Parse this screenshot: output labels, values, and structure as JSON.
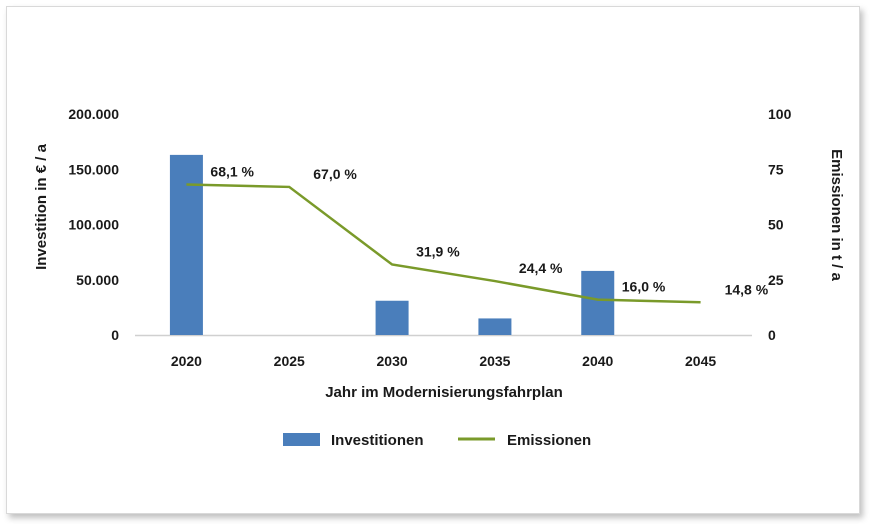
{
  "chart_data": {
    "type": "bar+line",
    "categories": [
      "2020",
      "2025",
      "2030",
      "2035",
      "2040",
      "2045"
    ],
    "series": [
      {
        "name": "Investitionen",
        "type": "bar",
        "axis": "left",
        "color": "#4a7ebb",
        "values": [
          163000,
          0,
          31000,
          15000,
          58000,
          0
        ]
      },
      {
        "name": "Emissionen",
        "type": "line",
        "axis": "right",
        "color": "#7a9a2a",
        "values": [
          68.1,
          67.0,
          31.9,
          24.4,
          16.0,
          14.8
        ],
        "labels": [
          "68,1 %",
          "67,0 %",
          "31,9 %",
          "24,4 %",
          "16,0 %",
          "14,8 %"
        ]
      }
    ],
    "xlabel": "Jahr im Modernisierungsfahrplan",
    "ylabel_left": "Investition in € / a",
    "ylabel_right": "Emissionen in t / a",
    "ylim_left": [
      0,
      200000
    ],
    "ylim_right": [
      0,
      100
    ],
    "yticks_left": [
      "0",
      "50.000",
      "100.000",
      "150.000",
      "200.000"
    ],
    "yticks_right": [
      "0",
      "25",
      "50",
      "75",
      "100"
    ],
    "grid": false,
    "legend_position": "bottom"
  }
}
